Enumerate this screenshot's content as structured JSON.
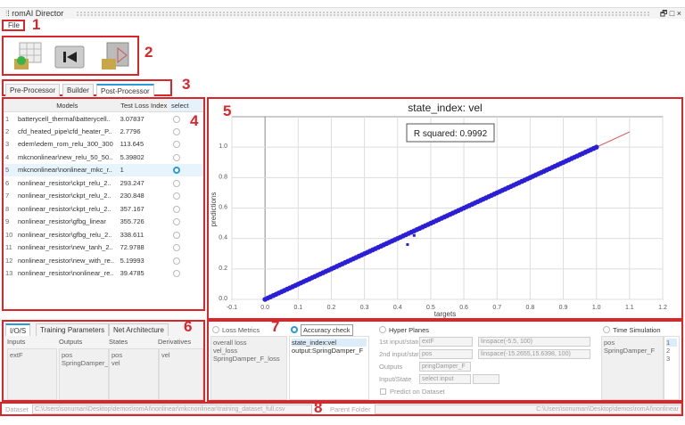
{
  "window": {
    "title": "romAI Director",
    "controls": "🗗 □ ×"
  },
  "menu": {
    "file": "File"
  },
  "annotations": [
    "1",
    "2",
    "3",
    "4",
    "5",
    "6",
    "7",
    "8"
  ],
  "toolbar": {
    "buttons": [
      {
        "icon": "load-table-icon"
      },
      {
        "icon": "skip-back-icon"
      },
      {
        "icon": "open-model-folder-icon"
      }
    ]
  },
  "tabs": [
    {
      "label": "Pre-Processor"
    },
    {
      "label": "Builder"
    },
    {
      "label": "Post-Processor",
      "active": true
    }
  ],
  "models_table": {
    "headers": [
      "Models",
      "Test Loss Index",
      "select"
    ],
    "rows": [
      {
        "n": "1",
        "model": "batterycell_thermal\\batterycell..",
        "loss": "3.07837",
        "selected": false
      },
      {
        "n": "2",
        "model": "cfd_heated_pipe\\cfd_heater_P..",
        "loss": "2.7796",
        "selected": false
      },
      {
        "n": "3",
        "model": "edem\\edem_rom_relu_300_300",
        "loss": "113.645",
        "selected": false
      },
      {
        "n": "4",
        "model": "mkcnonlinear\\new_relu_50_50..",
        "loss": "5.39802",
        "selected": false
      },
      {
        "n": "5",
        "model": "mkcnonlinear\\nonlinear_mkc_r..",
        "loss": "1",
        "selected": true
      },
      {
        "n": "6",
        "model": "nonlinear_resistor\\ckpt_relu_2..",
        "loss": "293.247",
        "selected": false
      },
      {
        "n": "7",
        "model": "nonlinear_resistor\\ckpt_relu_2..",
        "loss": "230.848",
        "selected": false
      },
      {
        "n": "8",
        "model": "nonlinear_resistor\\ckpt_relu_2..",
        "loss": "357.167",
        "selected": false
      },
      {
        "n": "9",
        "model": "nonlinear_resistor\\gfbg_linear",
        "loss": "355.726",
        "selected": false
      },
      {
        "n": "10",
        "model": "nonlinear_resistor\\gfbg_relu_2..",
        "loss": "338.611",
        "selected": false
      },
      {
        "n": "11",
        "model": "nonlinear_resistor\\new_tanh_2..",
        "loss": "72.9788",
        "selected": false
      },
      {
        "n": "12",
        "model": "nonlinear_resistor\\new_with_re..",
        "loss": "5.19993",
        "selected": false
      },
      {
        "n": "13",
        "model": "nonlinear_resistor\\nonlinear_re..",
        "loss": "39.4785",
        "selected": false
      }
    ]
  },
  "chart_data": {
    "type": "scatter",
    "title": "state_index: vel",
    "annotation": "R squared: 0.9992",
    "xlabel": "targets",
    "ylabel": "predictions",
    "xlim": [
      -0.1,
      1.2
    ],
    "ylim": [
      0,
      1.2
    ],
    "xticks": [
      "-0.1",
      "0.0",
      "0.1",
      "0.2",
      "0.3",
      "0.4",
      "0.5",
      "0.6",
      "0.7",
      "0.8",
      "0.9",
      "1.0",
      "1.1",
      "1.2"
    ],
    "yticks": [
      "0.0",
      "0.2",
      "0.4",
      "0.6",
      "0.8",
      "1.0"
    ],
    "grid": true,
    "points_color": "#2a1fd6",
    "reference_line": {
      "color": "#e05050",
      "x": [
        0,
        1.1
      ],
      "y": [
        0,
        1.1
      ]
    },
    "points": {
      "x_range": [
        0,
        1
      ],
      "y_equals_x": true,
      "outliers": [
        [
          0.43,
          0.36
        ],
        [
          0.45,
          0.42
        ]
      ]
    }
  },
  "io_tabs": [
    {
      "label": "I/O/S",
      "active": true
    },
    {
      "label": "Training Parameters"
    },
    {
      "label": "Net Architecture"
    }
  ],
  "io": {
    "headers": [
      "Inputs",
      "Outputs",
      "States",
      "Derivatives"
    ],
    "inputs": [
      "extF"
    ],
    "outputs": [
      "pos",
      "SpringDamper_"
    ],
    "states": [
      "pos",
      "vel"
    ],
    "derivatives": [
      "vel"
    ]
  },
  "post": {
    "loss_metrics": {
      "label": "Loss Metrics",
      "items": [
        "overall loss",
        "vel_loss",
        "SpringDamper_F_loss"
      ]
    },
    "accuracy": {
      "label": "Accuracy check",
      "items": [
        "state_index:vel",
        "output:SpringDamper_F"
      ]
    },
    "hyper": {
      "label": "Hyper Planes",
      "first_label": "1st input/state",
      "first_value": "extF",
      "first_space": "linspace(-5.5, 100)",
      "second_label": "2nd input/state",
      "second_value": "pos",
      "second_space": "linspace(-15.2655,15.6398, 100)",
      "outputs_label": "Outputs",
      "outputs_value": "pringDamper_F",
      "inputstate_label": "Input/State",
      "inputstate_value": "select input",
      "predict_label": "Predict on Dataset"
    },
    "time": {
      "label": "Time Simulation",
      "items": [
        "pos",
        "SpringDamper_F"
      ],
      "nums": [
        "1",
        "2",
        "3"
      ]
    }
  },
  "status": {
    "dataset_label": "Dataset",
    "dataset_path": "C:\\Users\\sonuman\\Desktop\\demos\\romAI\\nonlinear\\mkcnonlinear\\training_dataset_full.csv",
    "parent_label": "Parent Folder",
    "parent_path": "C:\\Users\\sonuman\\Desktop\\demos\\romAI\\nonlinear"
  }
}
